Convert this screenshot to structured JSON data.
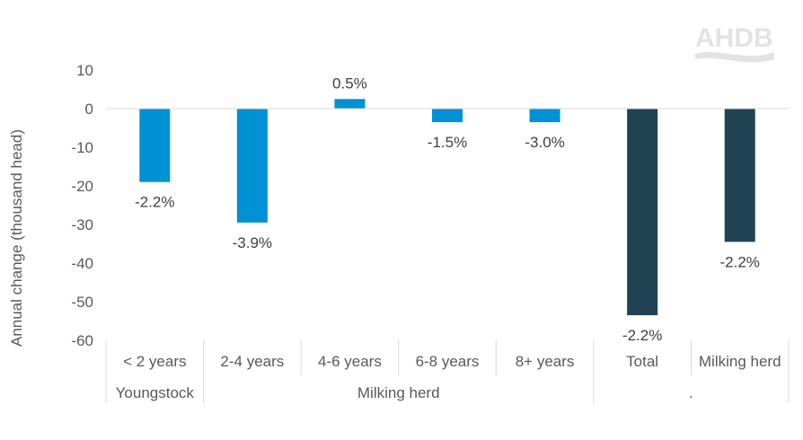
{
  "chart_data": {
    "type": "bar",
    "ylabel": "Annual change (thousand head)",
    "ylim": [
      -60,
      10
    ],
    "yticks": [
      10,
      0,
      -10,
      -20,
      -30,
      -40,
      -50,
      -60
    ],
    "grid": false,
    "legend": "none",
    "categories": [
      "< 2 years",
      "2-4 years",
      "4-6 years",
      "6-8 years",
      "8+ years",
      "Total",
      "Milking herd"
    ],
    "groups": [
      {
        "label": "Youngstock",
        "span": [
          0,
          0
        ]
      },
      {
        "label": "Milking herd",
        "span": [
          1,
          4
        ]
      },
      {
        "label": ".",
        "span": [
          5,
          6
        ]
      }
    ],
    "values": [
      -19,
      -29.5,
      2.5,
      -3.5,
      -3.5,
      -53.5,
      -34.5
    ],
    "data_labels": [
      "-2.2%",
      "-3.9%",
      "0.5%",
      "-1.5%",
      "-3.0%",
      "-2.2%",
      "-2.2%"
    ],
    "colors": [
      "#0090d4",
      "#0090d4",
      "#0090d4",
      "#0090d4",
      "#0090d4",
      "#204354",
      "#204354"
    ]
  },
  "logo": {
    "text": "AHDB"
  }
}
